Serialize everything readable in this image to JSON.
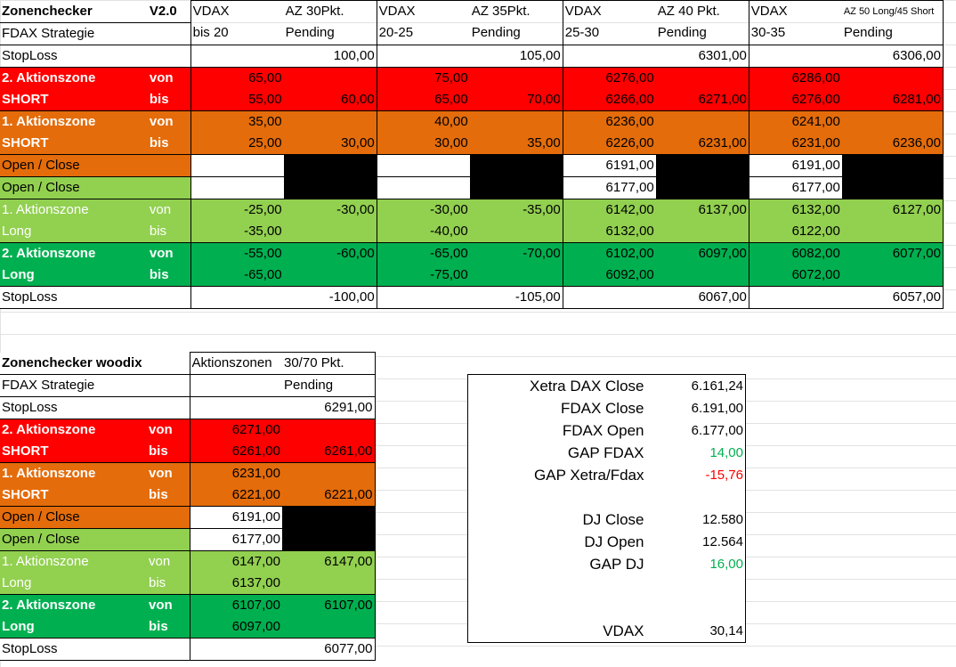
{
  "colors": {
    "red": "#ff0000",
    "orange": "#e46c0a",
    "light_green": "#92d050",
    "dark_green": "#00b050"
  },
  "main": {
    "title": "Zonenchecker",
    "version": "V2.0",
    "subtitle": "FDAX Strategie",
    "headers": [
      {
        "vdax": "VDAX",
        "range": "bis 20",
        "az": "AZ 30Pkt.",
        "pending": "Pending"
      },
      {
        "vdax": "VDAX",
        "range": "20-25",
        "az": "AZ 35Pkt.",
        "pending": "Pending"
      },
      {
        "vdax": "VDAX",
        "range": "25-30",
        "az": "AZ 40 Pkt.",
        "pending": "Pending"
      },
      {
        "vdax": "VDAX",
        "range": "30-35",
        "az": "AZ 50 Long/45 Short",
        "pending": "Pending"
      }
    ],
    "labels": {
      "stoploss": "StopLoss",
      "az2": "2. Aktionszone",
      "az1": "1. Aktionszone",
      "short": "SHORT",
      "long": "Long",
      "von": "von",
      "bis": "bis",
      "open_close": "Open / Close"
    },
    "rows": {
      "stoploss_top": [
        "",
        "100,00",
        "",
        "105,00",
        "",
        "6301,00",
        "",
        "6306,00"
      ],
      "az2s_von": [
        "65,00",
        "",
        "75,00",
        "",
        "6276,00",
        "",
        "6286,00",
        ""
      ],
      "az2s_bis": [
        "55,00",
        "60,00",
        "65,00",
        "70,00",
        "6266,00",
        "6271,00",
        "6276,00",
        "6281,00"
      ],
      "az1s_von": [
        "35,00",
        "",
        "40,00",
        "",
        "6236,00",
        "",
        "6241,00",
        ""
      ],
      "az1s_bis": [
        "25,00",
        "30,00",
        "30,00",
        "35,00",
        "6226,00",
        "6231,00",
        "6231,00",
        "6236,00"
      ],
      "oc1": [
        "",
        "",
        "",
        "",
        "6191,00",
        "",
        "6191,00",
        ""
      ],
      "oc2": [
        "",
        "",
        "",
        "",
        "6177,00",
        "",
        "6177,00",
        ""
      ],
      "az1l_von": [
        "-25,00",
        "-30,00",
        "-30,00",
        "-35,00",
        "6142,00",
        "6137,00",
        "6132,00",
        "6127,00"
      ],
      "az1l_bis": [
        "-35,00",
        "",
        "-40,00",
        "",
        "6132,00",
        "",
        "6122,00",
        ""
      ],
      "az2l_von": [
        "-55,00",
        "-60,00",
        "-65,00",
        "-70,00",
        "6102,00",
        "6097,00",
        "6082,00",
        "6077,00"
      ],
      "az2l_bis": [
        "-65,00",
        "",
        "-75,00",
        "",
        "6092,00",
        "",
        "6072,00",
        ""
      ],
      "stoploss_bottom": [
        "",
        "-100,00",
        "",
        "-105,00",
        "",
        "6067,00",
        "",
        "6057,00"
      ]
    }
  },
  "woodix": {
    "title": "Zonenchecker woodix",
    "subtitle": "FDAX Strategie",
    "header_a": "Aktionszonen",
    "header_b": "30/70 Pkt.",
    "header_pending": "Pending",
    "rows": {
      "stoploss_top": [
        "",
        "6291,00"
      ],
      "az2s_von": [
        "6271,00",
        ""
      ],
      "az2s_bis": [
        "6261,00",
        "6261,00"
      ],
      "az1s_von": [
        "6231,00",
        ""
      ],
      "az1s_bis": [
        "6221,00",
        "6221,00"
      ],
      "oc1": [
        "6191,00",
        ""
      ],
      "oc2": [
        "6177,00",
        ""
      ],
      "az1l_von": [
        "6147,00",
        "6147,00"
      ],
      "az1l_bis": [
        "6137,00",
        ""
      ],
      "az2l_von": [
        "6107,00",
        "6107,00"
      ],
      "az2l_bis": [
        "6097,00",
        ""
      ],
      "stoploss_bottom": [
        "",
        "6077,00"
      ]
    }
  },
  "summary": [
    {
      "label": "Xetra DAX Close",
      "value": "6.161,24",
      "tone": ""
    },
    {
      "label": "FDAX Close",
      "value": "6.191,00",
      "tone": ""
    },
    {
      "label": "FDAX Open",
      "value": "6.177,00",
      "tone": ""
    },
    {
      "label": "GAP FDAX",
      "value": "14,00",
      "tone": "pos"
    },
    {
      "label": "GAP Xetra/Fdax",
      "value": "-15,76",
      "tone": "neg"
    },
    {
      "label": "",
      "value": "",
      "tone": ""
    },
    {
      "label": "DJ Close",
      "value": "12.580",
      "tone": ""
    },
    {
      "label": "DJ Open",
      "value": "12.564",
      "tone": ""
    },
    {
      "label": "GAP DJ",
      "value": "16,00",
      "tone": "pos"
    },
    {
      "label": "",
      "value": "",
      "tone": ""
    },
    {
      "label": "",
      "value": "",
      "tone": ""
    },
    {
      "label": "VDAX",
      "value": "30,14",
      "tone": ""
    }
  ]
}
